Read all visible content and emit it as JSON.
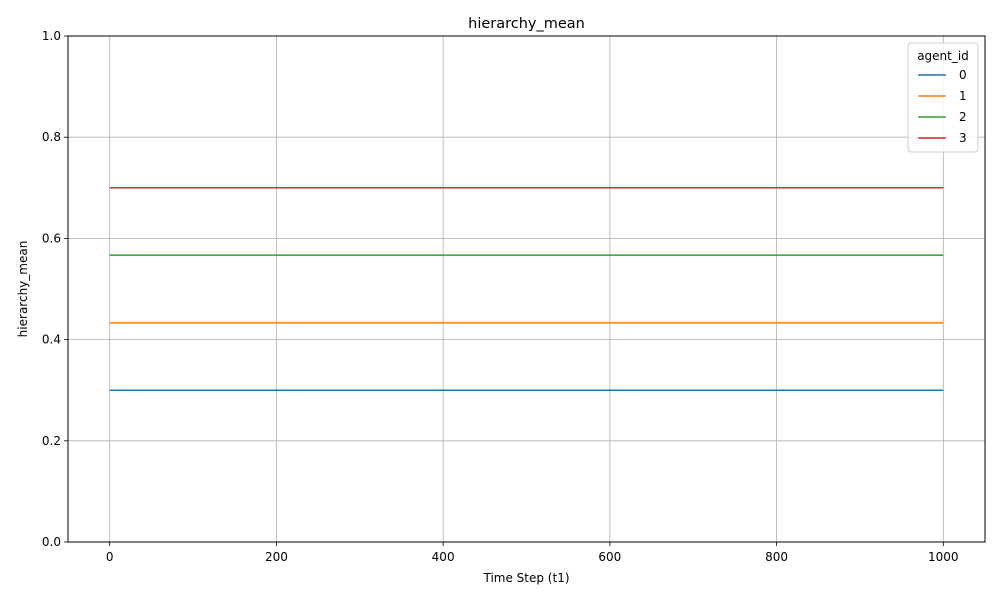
{
  "chart_data": {
    "type": "line",
    "title": "hierarchy_mean",
    "xlabel": "Time Step (t1)",
    "ylabel": "hierarchy_mean",
    "xlim": [
      -50,
      1050
    ],
    "ylim": [
      0.0,
      1.0
    ],
    "xticks": [
      0,
      200,
      400,
      600,
      800,
      1000
    ],
    "xtick_labels": [
      "0",
      "200",
      "400",
      "600",
      "800",
      "1000"
    ],
    "yticks": [
      0.0,
      0.2,
      0.4,
      0.6,
      0.8,
      1.0
    ],
    "ytick_labels": [
      "0.0",
      "0.2",
      "0.4",
      "0.6",
      "0.8",
      "1.0"
    ],
    "grid": true,
    "legend": {
      "title": "agent_id",
      "placement": "top-right"
    },
    "x": [
      0,
      1000
    ],
    "series": [
      {
        "name": "0",
        "color": "#1f77b4",
        "values": [
          0.3,
          0.3
        ]
      },
      {
        "name": "1",
        "color": "#ff7f0e",
        "values": [
          0.433,
          0.433
        ]
      },
      {
        "name": "2",
        "color": "#2ca02c",
        "values": [
          0.567,
          0.567
        ]
      },
      {
        "name": "3",
        "color": "#d62728",
        "values": [
          0.7,
          0.7
        ]
      }
    ]
  }
}
